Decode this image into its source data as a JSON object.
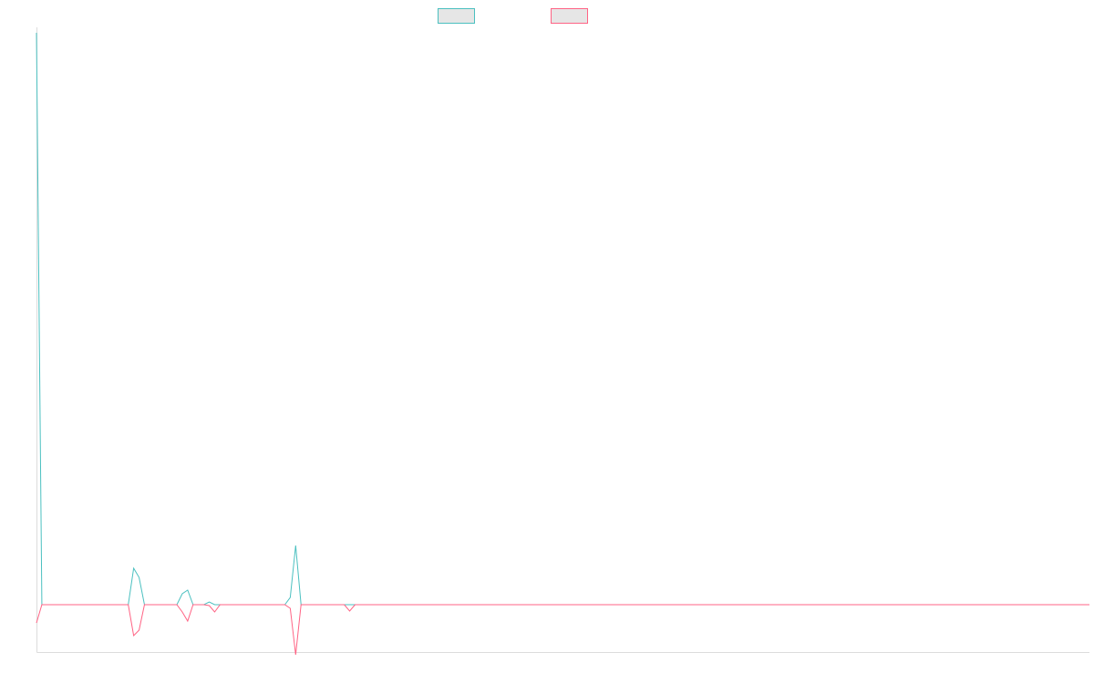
{
  "chart_data": {
    "type": "line",
    "title": "",
    "xlabel": "",
    "ylabel": "",
    "grid": false,
    "legend_position": "top-center",
    "xlim": [
      0,
      195
    ],
    "ylim": [
      -52,
      628
    ],
    "series": [
      {
        "color": "#4bc0c0",
        "values": [
          {
            "x": 0,
            "y": 628
          },
          {
            "x": 1,
            "y": 0
          },
          {
            "x": 17,
            "y": 0
          },
          {
            "x": 18,
            "y": 40
          },
          {
            "x": 19,
            "y": 30
          },
          {
            "x": 20,
            "y": 0
          },
          {
            "x": 26,
            "y": 0
          },
          {
            "x": 27,
            "y": 12
          },
          {
            "x": 28,
            "y": 16
          },
          {
            "x": 29,
            "y": 0
          },
          {
            "x": 31,
            "y": 0
          },
          {
            "x": 32,
            "y": 3
          },
          {
            "x": 33,
            "y": 0
          },
          {
            "x": 46,
            "y": 0
          },
          {
            "x": 47,
            "y": 8
          },
          {
            "x": 48,
            "y": 65
          },
          {
            "x": 49,
            "y": 0
          },
          {
            "x": 57,
            "y": 0
          },
          {
            "x": 58,
            "y": 0
          },
          {
            "x": 59,
            "y": 0
          },
          {
            "x": 195,
            "y": 0
          }
        ]
      },
      {
        "color": "#ff6384",
        "values": [
          {
            "x": 0,
            "y": -20
          },
          {
            "x": 1,
            "y": 0
          },
          {
            "x": 17,
            "y": 0
          },
          {
            "x": 18,
            "y": -34
          },
          {
            "x": 19,
            "y": -28
          },
          {
            "x": 20,
            "y": 0
          },
          {
            "x": 26,
            "y": 0
          },
          {
            "x": 27,
            "y": -8
          },
          {
            "x": 28,
            "y": -18
          },
          {
            "x": 29,
            "y": 0
          },
          {
            "x": 31,
            "y": 0
          },
          {
            "x": 32,
            "y": -1
          },
          {
            "x": 33,
            "y": -8
          },
          {
            "x": 34,
            "y": 0
          },
          {
            "x": 46,
            "y": 0
          },
          {
            "x": 47,
            "y": -4
          },
          {
            "x": 48,
            "y": -55
          },
          {
            "x": 49,
            "y": 0
          },
          {
            "x": 57,
            "y": 0
          },
          {
            "x": 58,
            "y": -7
          },
          {
            "x": 59,
            "y": 0
          },
          {
            "x": 195,
            "y": 0
          }
        ]
      }
    ]
  }
}
